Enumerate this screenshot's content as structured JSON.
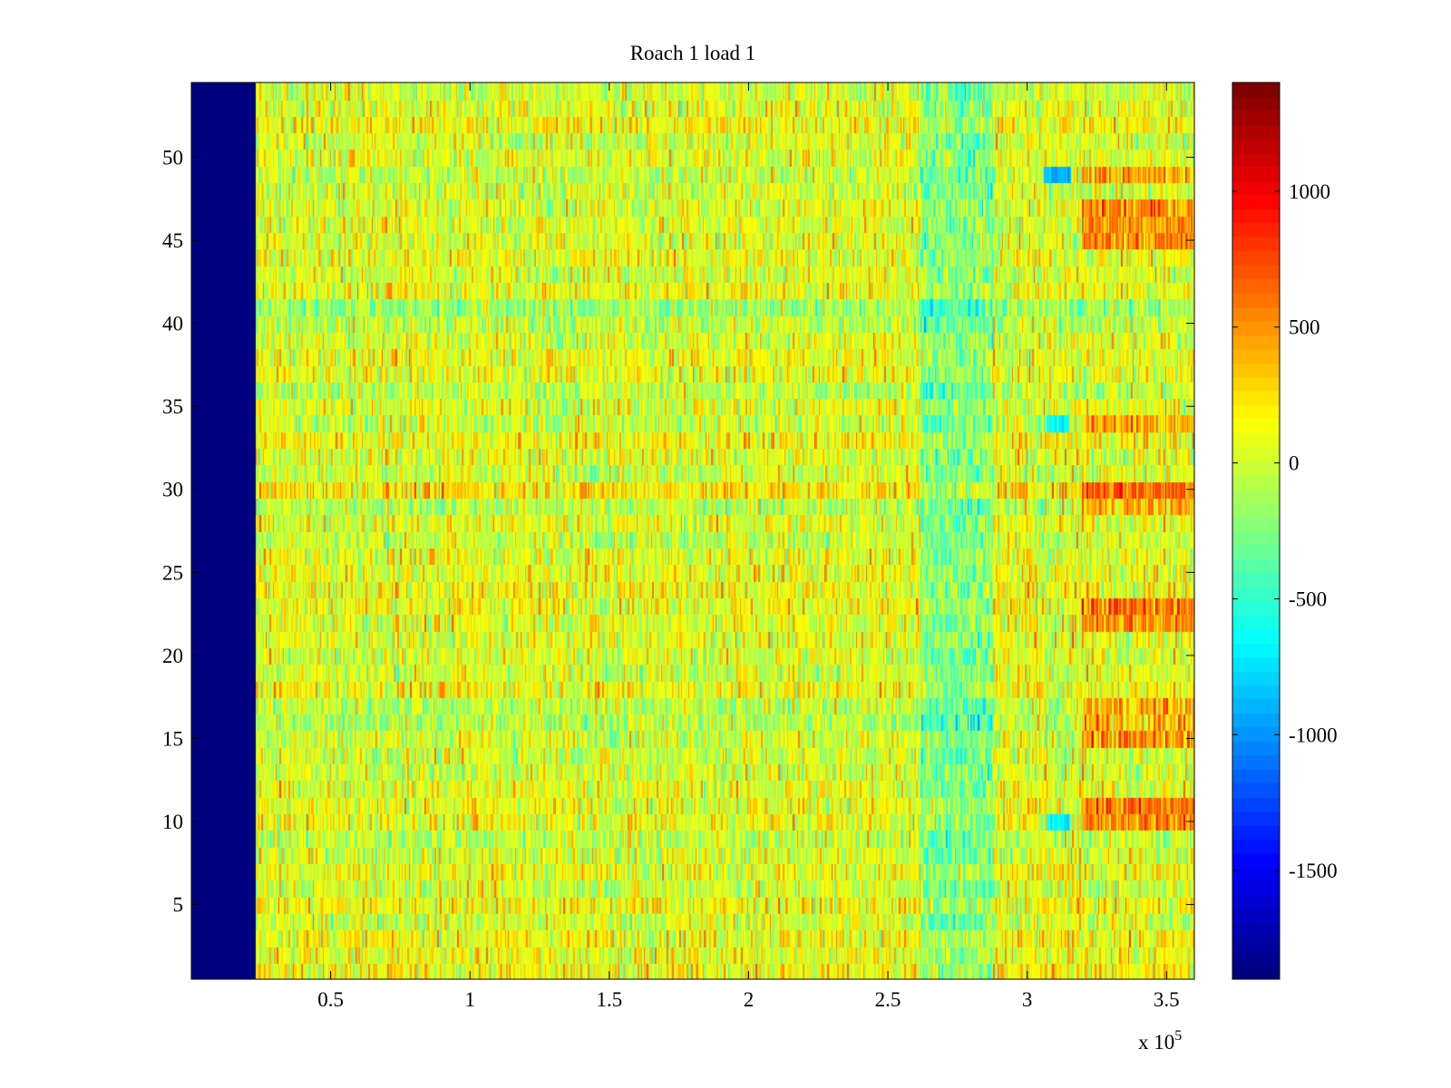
{
  "chart_data": {
    "type": "heatmap",
    "title": "Roach 1 load 1",
    "xlabel": "",
    "ylabel": "",
    "x_exponent_label": "x 10",
    "x_exponent_power": "5",
    "xlim": [
      0,
      3.6
    ],
    "ylim": [
      0.5,
      54.5
    ],
    "x_ticks": [
      {
        "value": 0.5,
        "label": "0.5"
      },
      {
        "value": 1.0,
        "label": "1"
      },
      {
        "value": 1.5,
        "label": "1.5"
      },
      {
        "value": 2.0,
        "label": "2"
      },
      {
        "value": 2.5,
        "label": "2.5"
      },
      {
        "value": 3.0,
        "label": "3"
      },
      {
        "value": 3.5,
        "label": "3.5"
      }
    ],
    "y_ticks": [
      {
        "value": 5,
        "label": "5"
      },
      {
        "value": 10,
        "label": "10"
      },
      {
        "value": 15,
        "label": "15"
      },
      {
        "value": 20,
        "label": "20"
      },
      {
        "value": 25,
        "label": "25"
      },
      {
        "value": 30,
        "label": "30"
      },
      {
        "value": 35,
        "label": "35"
      },
      {
        "value": 40,
        "label": "40"
      },
      {
        "value": 45,
        "label": "45"
      },
      {
        "value": 50,
        "label": "50"
      }
    ],
    "rows": 54,
    "colormap": "jet",
    "color_limits": [
      -1900,
      1400
    ],
    "colorbar_ticks": [
      {
        "value": 1000,
        "label": "1000"
      },
      {
        "value": 500,
        "label": "500"
      },
      {
        "value": 0,
        "label": "0"
      },
      {
        "value": -500,
        "label": "-500"
      },
      {
        "value": -1000,
        "label": "-1000"
      },
      {
        "value": -1500,
        "label": "-1500"
      }
    ],
    "regions": {
      "blank_start_x": 0,
      "blank_end_x": 0.23,
      "blank_value": -1900,
      "base_mean": 60,
      "low_band_x": [
        2.62,
        2.88
      ],
      "low_band_mean": -320,
      "hot_band_x": [
        3.2,
        3.6
      ],
      "hot_band_mean": 450,
      "hot_rows": [
        10,
        11,
        15,
        16,
        17,
        22,
        23,
        29,
        30,
        34,
        45,
        46,
        47,
        49
      ],
      "cold_spots": [
        {
          "row": 49,
          "x": [
            3.06,
            3.16
          ],
          "value": -900
        },
        {
          "row": 10,
          "x": [
            3.07,
            3.15
          ],
          "value": -700
        },
        {
          "row": 34,
          "x": [
            3.07,
            3.15
          ],
          "value": -650
        }
      ]
    }
  }
}
